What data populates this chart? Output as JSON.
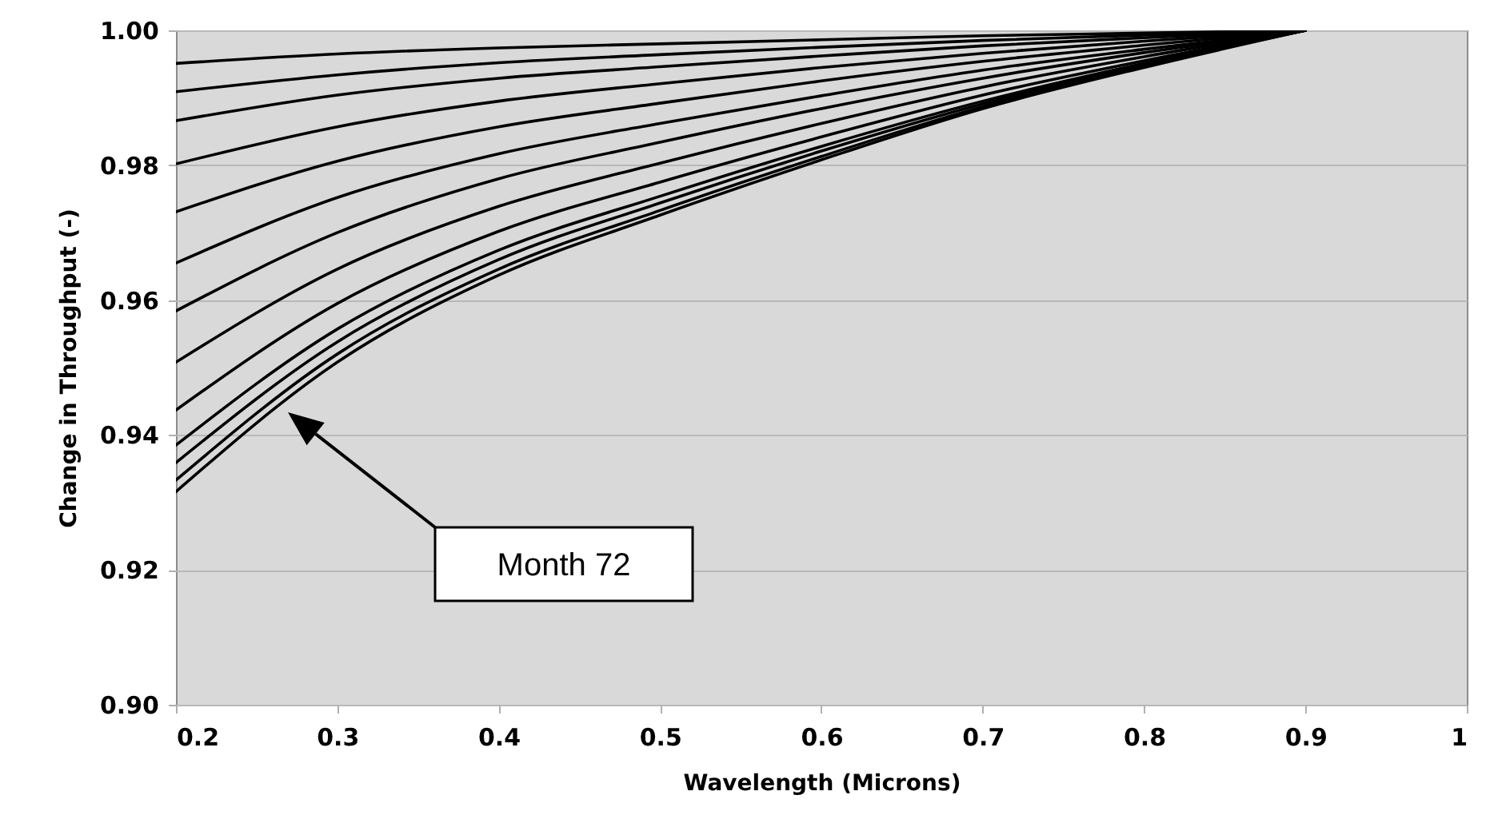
{
  "chart_data": {
    "type": "line",
    "xlabel": "Wavelength (Microns)",
    "ylabel": "Change in Throughput (-)",
    "x": [
      0.2,
      0.3,
      0.4,
      0.5,
      0.6,
      0.7,
      0.8,
      0.9
    ],
    "series": [
      {
        "color": "#000000",
        "values": [
          0.9951,
          0.9965,
          0.9974,
          0.998,
          0.9986,
          0.9992,
          0.9996,
          1
        ]
      },
      {
        "color": "#000000",
        "values": [
          0.9909,
          0.9934,
          0.9952,
          0.9964,
          0.9975,
          0.9985,
          0.9993,
          1
        ]
      },
      {
        "color": "#000000",
        "values": [
          0.9866,
          0.9904,
          0.9929,
          0.9946,
          0.9962,
          0.9977,
          0.9989,
          1
        ]
      },
      {
        "color": "#000000",
        "values": [
          0.9802,
          0.9857,
          0.9895,
          0.9921,
          0.9945,
          0.9966,
          0.9984,
          1
        ]
      },
      {
        "color": "#000000",
        "values": [
          0.9731,
          0.9806,
          0.9857,
          0.9892,
          0.9925,
          0.9954,
          0.9978,
          1
        ]
      },
      {
        "color": "#000000",
        "values": [
          0.9655,
          0.9752,
          0.9817,
          0.9862,
          0.9903,
          0.9941,
          0.9972,
          1
        ]
      },
      {
        "color": "#000000",
        "values": [
          0.9584,
          0.97,
          0.978,
          0.9834,
          0.9884,
          0.9929,
          0.9967,
          1
        ]
      },
      {
        "color": "#000000",
        "values": [
          0.9508,
          0.9646,
          0.9739,
          0.9803,
          0.9862,
          0.9916,
          0.9961,
          1
        ]
      },
      {
        "color": "#000000",
        "values": [
          0.9437,
          0.9595,
          0.9702,
          0.9775,
          0.9842,
          0.9904,
          0.9955,
          1
        ]
      },
      {
        "color": "#000000",
        "values": [
          0.9385,
          0.9557,
          0.9674,
          0.9754,
          0.9828,
          0.9895,
          0.9951,
          1
        ]
      },
      {
        "color": "#000000",
        "values": [
          0.9359,
          0.9538,
          0.966,
          0.9744,
          0.9821,
          0.9891,
          0.9949,
          1
        ]
      },
      {
        "color": "#000000",
        "values": [
          0.9333,
          0.952,
          0.9646,
          0.9733,
          0.9813,
          0.9887,
          0.9947,
          1
        ]
      },
      {
        "color": "#000000",
        "values": [
          0.9316,
          0.9508,
          0.9637,
          0.9726,
          0.9808,
          0.9884,
          0.9945,
          1
        ]
      }
    ],
    "xlim": [
      0.2,
      1
    ],
    "xticks": [
      0.2,
      0.3,
      0.4,
      0.5,
      0.6,
      0.7,
      0.8,
      0.9,
      1
    ],
    "ylim": [
      0.9,
      1
    ],
    "yticks": [
      {
        "value": 0.9,
        "label": "0.90"
      },
      0.92,
      0.94,
      0.96,
      0.98,
      {
        "value": 1,
        "label": "1.00"
      }
    ],
    "grid": "y",
    "marker": "none",
    "line_style": "solid",
    "annotations": [
      "Month 72"
    ]
  }
}
